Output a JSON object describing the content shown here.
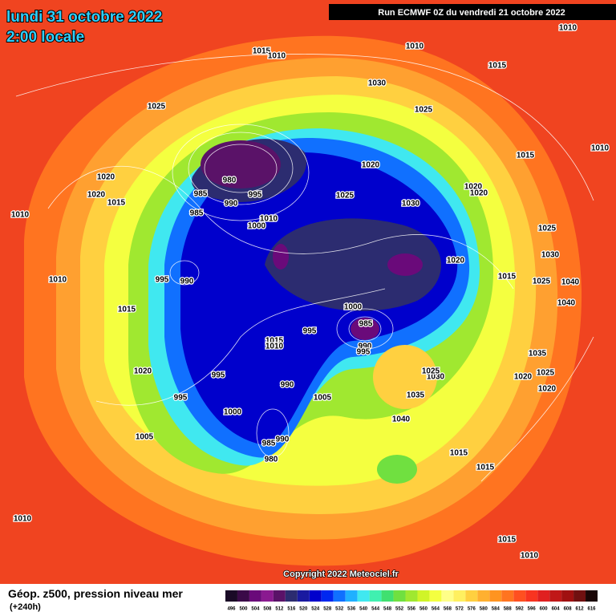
{
  "header": {
    "date": "lundi 31 octobre 2022",
    "time": "2:00 locale",
    "run": "Run ECMWF 0Z du vendredi 21 octobre 2022"
  },
  "footer": {
    "title": "Géop. z500, pression niveau mer",
    "subtitle": "(+240h)",
    "copyright": "Copyright 2022 Meteociel.fr"
  },
  "legend": {
    "labels": [
      496,
      500,
      504,
      508,
      512,
      516,
      520,
      524,
      528,
      532,
      536,
      540,
      544,
      548,
      552,
      556,
      560,
      564,
      568,
      572,
      576,
      580,
      584,
      588,
      592,
      596,
      600,
      604,
      608,
      612,
      616
    ],
    "colors": [
      "#1a0a26",
      "#3a0a48",
      "#6a0a7a",
      "#8a1a90",
      "#5a1268",
      "#2c2c70",
      "#1a1aa0",
      "#0000cc",
      "#0028f0",
      "#1070ff",
      "#20b0ff",
      "#40e8f0",
      "#40f0b0",
      "#40e070",
      "#70e040",
      "#a0e830",
      "#d0f428",
      "#f4ff40",
      "#ffff88",
      "#fff060",
      "#ffd040",
      "#ffb030",
      "#ff9420",
      "#ff7420",
      "#ff5020",
      "#f83420",
      "#e02020",
      "#c01818",
      "#a01010",
      "#701010",
      "#1a0606"
    ]
  },
  "isobars": [
    "1010",
    "1015",
    "1010",
    "1010",
    "1030",
    "1025",
    "1025",
    "1015",
    "1010",
    "1020",
    "1020",
    "1020",
    "1015",
    "1010",
    "980",
    "985",
    "995",
    "990",
    "985",
    "1010",
    "1000",
    "1025",
    "1020",
    "1030",
    "1020",
    "1015",
    "1020",
    "1025",
    "1030",
    "1025",
    "1040",
    "1040",
    "1010",
    "995",
    "990",
    "1015",
    "1015",
    "1000",
    "985",
    "995",
    "990",
    "1015",
    "1010",
    "995",
    "1020",
    "995",
    "990",
    "1000",
    "1005",
    "1035",
    "1040",
    "995",
    "985",
    "990",
    "980",
    "1005",
    "1030",
    "1025",
    "1020",
    "1035",
    "1025",
    "1020",
    "1015",
    "1015",
    "1010",
    "1015",
    "1010"
  ]
}
